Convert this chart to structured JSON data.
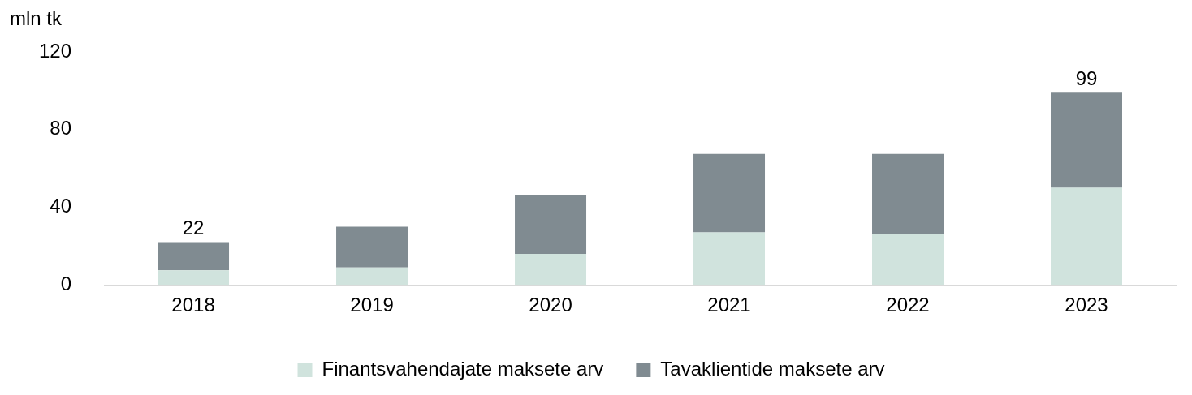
{
  "chart_data": {
    "type": "bar",
    "stacked": true,
    "ylabel": "mln tk",
    "categories": [
      "2018",
      "2019",
      "2020",
      "2021",
      "2022",
      "2023"
    ],
    "series": [
      {
        "name": "Finantsvahendajate maksete arv",
        "color": "#d0e3dd",
        "values": [
          7.5,
          9,
          16,
          27,
          26,
          50
        ]
      },
      {
        "name": "Tavaklientide maksete arv",
        "color": "#808b91",
        "values": [
          14.5,
          21,
          30,
          40.5,
          41.5,
          49
        ]
      }
    ],
    "ylim": [
      0,
      120
    ],
    "yticks": [
      0,
      40,
      80,
      120
    ],
    "grid": false,
    "legend": "bottom",
    "totals": [
      "22",
      null,
      null,
      null,
      null,
      "99"
    ]
  }
}
